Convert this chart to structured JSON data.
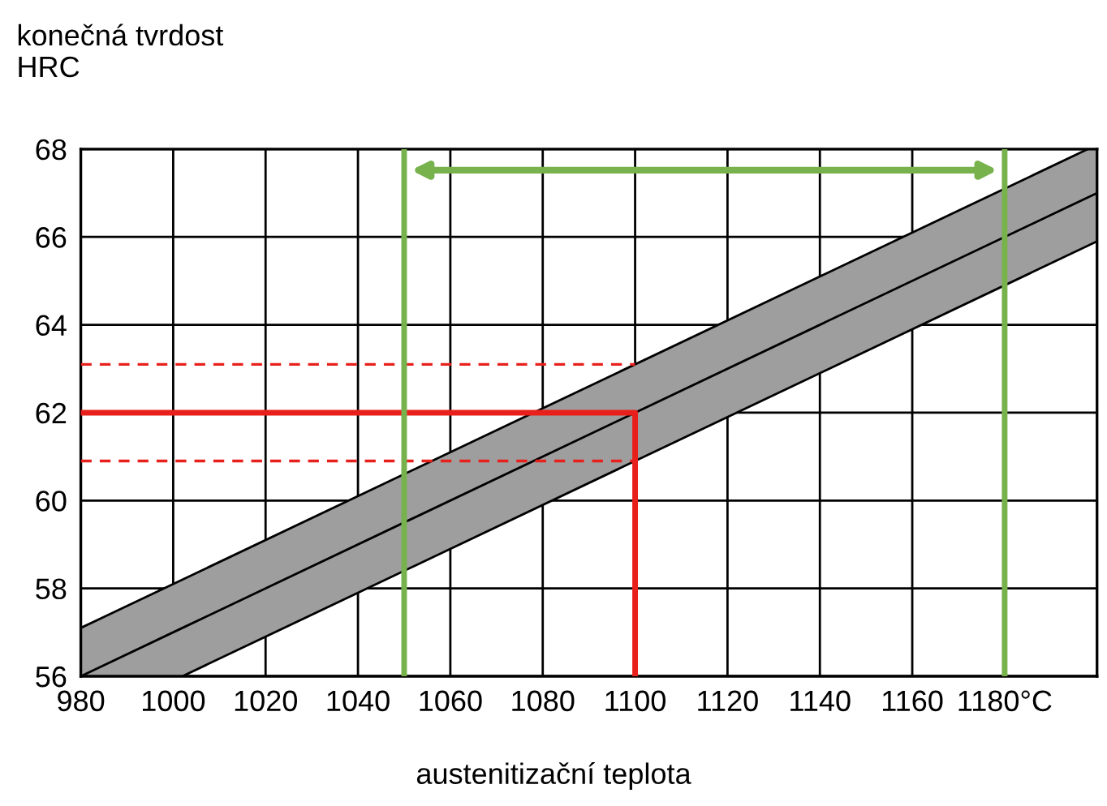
{
  "chart_data": {
    "type": "line",
    "ylabel": "konečná tvrdost\nHRC",
    "xlabel": "austenitizační teplota",
    "xlim": [
      980,
      1200
    ],
    "ylim": [
      56,
      68
    ],
    "xticks": [
      980,
      1000,
      1020,
      1040,
      1060,
      1080,
      1100,
      1120,
      1140,
      1160,
      {
        "value": 1180,
        "label": "1180°C"
      }
    ],
    "yticks": [
      56,
      58,
      60,
      62,
      64,
      66,
      68
    ],
    "grid": true,
    "series": [
      {
        "color": "#000000",
        "x": [
          980,
          1002,
          1198,
          1200
        ],
        "values": [
          56,
          57.1,
          66.9,
          67
        ],
        "lower": [
          56,
          56,
          65.8,
          65.9
        ],
        "upper": [
          57.1,
          58.2,
          68,
          68
        ]
      },
      {
        "color": "#000000",
        "x": [
          980,
          1198
        ],
        "values": [
          57.1,
          68
        ]
      },
      {
        "color": "#000000",
        "x": [
          1002,
          1200
        ],
        "values": [
          56,
          65.9
        ]
      },
      {
        "color": "#e8201c",
        "x": [
          980,
          1100,
          1100
        ],
        "values": [
          62,
          62,
          56
        ],
        "line_style": "solid"
      },
      {
        "color": "#e8201c",
        "x": [
          980,
          1100
        ],
        "values": [
          63.1,
          63.1
        ],
        "line_style": "dashed"
      },
      {
        "color": "#e8201c",
        "x": [
          980,
          1100
        ],
        "values": [
          60.9,
          60.9
        ],
        "line_style": "dashed"
      }
    ],
    "ref_lines": [
      {
        "axis": "x",
        "value": 1050,
        "color": "#77b24c"
      },
      {
        "axis": "x",
        "value": 1180,
        "color": "#77b24c"
      }
    ]
  }
}
